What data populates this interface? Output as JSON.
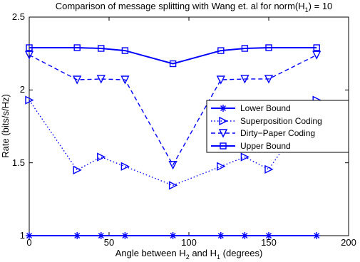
{
  "chart_data": {
    "type": "line",
    "title": "Comparison of message splitting with Wang et. al for norm(H",
    "title_sub": "1",
    "title_suffix": ") = 10",
    "xlabel": "Angle between H",
    "xlabel_sub1": "2",
    "xlabel_mid": " and H",
    "xlabel_sub2": "1",
    "xlabel_suffix": " (degrees)",
    "ylabel": "Rate (bits/s/Hz)",
    "xlim": [
      0,
      200
    ],
    "ylim": [
      1,
      2.5
    ],
    "xticks": [
      "0",
      "50",
      "100",
      "150",
      "200"
    ],
    "yticks": [
      "1",
      "1.5",
      "2",
      "2.5"
    ],
    "grid": false,
    "legend_position": "center-right",
    "series": [
      {
        "name": "Lower Bound",
        "color": "#0000ff",
        "line": "solid",
        "marker": "star",
        "x": [
          0,
          30,
          45,
          60,
          90,
          120,
          135,
          150,
          180
        ],
        "y": [
          1.0,
          1.0,
          1.0,
          1.0,
          1.0,
          1.0,
          1.0,
          1.0,
          1.0
        ]
      },
      {
        "name": "Superposition Coding",
        "color": "#0000ff",
        "line": "dotted",
        "marker": "triangle-right",
        "x": [
          0,
          30,
          45,
          60,
          90,
          120,
          135,
          150,
          180
        ],
        "y": [
          1.93,
          1.45,
          1.54,
          1.475,
          1.345,
          1.475,
          1.54,
          1.455,
          1.93
        ]
      },
      {
        "name": "Dirty−Paper Coding",
        "color": "#0000ff",
        "line": "dashed",
        "marker": "triangle-down",
        "x": [
          0,
          30,
          45,
          60,
          90,
          120,
          135,
          150,
          180
        ],
        "y": [
          2.24,
          2.07,
          2.075,
          2.07,
          1.485,
          2.07,
          2.075,
          2.075,
          2.24
        ]
      },
      {
        "name": "Upper Bound",
        "color": "#0000ff",
        "line": "solid",
        "marker": "square",
        "x": [
          0,
          30,
          45,
          60,
          90,
          120,
          135,
          150,
          180
        ],
        "y": [
          2.29,
          2.29,
          2.285,
          2.27,
          2.18,
          2.27,
          2.285,
          2.29,
          2.29
        ]
      }
    ]
  }
}
